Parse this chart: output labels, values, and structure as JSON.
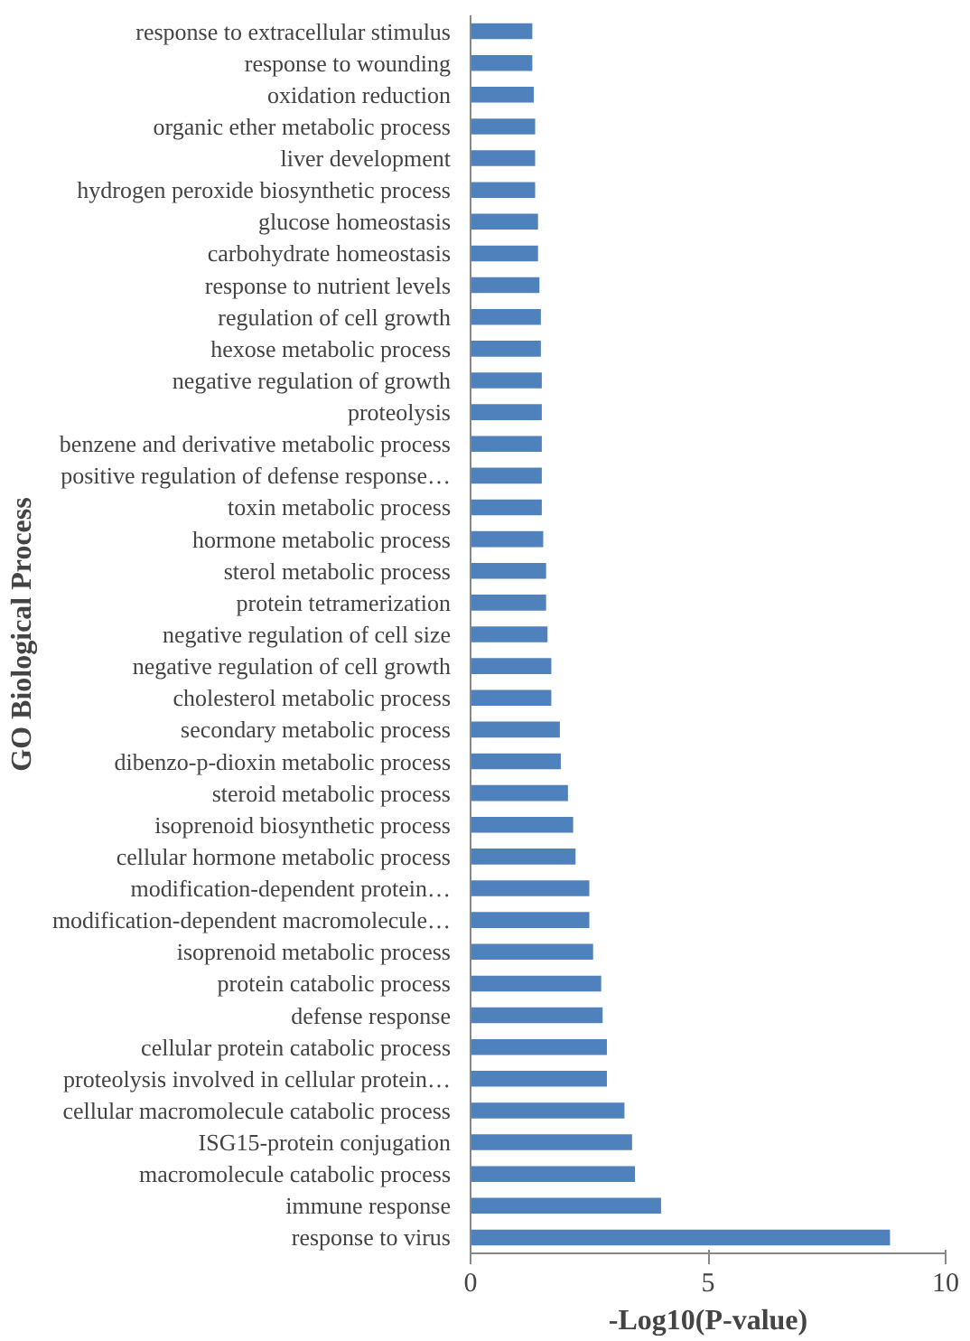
{
  "chart_data": {
    "type": "bar",
    "orientation": "horizontal",
    "xlabel": "-Log10(P-value)",
    "ylabel": "GO Biological Process",
    "categories": [
      "response to extracellular stimulus",
      "response to wounding",
      "oxidation reduction",
      "organic ether metabolic process",
      "liver development",
      "hydrogen peroxide biosynthetic process",
      "glucose homeostasis",
      "carbohydrate homeostasis",
      "response to nutrient levels",
      "regulation of cell growth",
      "hexose metabolic process",
      "negative regulation of growth",
      "proteolysis",
      "benzene and derivative metabolic process",
      "positive regulation of defense response…",
      "toxin metabolic process",
      "hormone metabolic process",
      "sterol metabolic process",
      "protein tetramerization",
      "negative regulation of cell size",
      "negative regulation of cell growth",
      "cholesterol metabolic process",
      "secondary metabolic process",
      "dibenzo-p-dioxin metabolic process",
      "steroid metabolic process",
      "isoprenoid biosynthetic process",
      "cellular hormone metabolic process",
      "modification-dependent protein…",
      "modification-dependent macromolecule…",
      "isoprenoid metabolic process",
      "protein catabolic process",
      "defense response",
      "cellular protein catabolic process",
      "proteolysis involved in cellular protein…",
      "cellular macromolecule catabolic process",
      "ISG15-protein conjugation",
      "macromolecule catabolic process",
      "immune response",
      "response to virus"
    ],
    "values": [
      1.3,
      1.3,
      1.33,
      1.36,
      1.36,
      1.36,
      1.42,
      1.42,
      1.45,
      1.48,
      1.48,
      1.5,
      1.5,
      1.5,
      1.5,
      1.5,
      1.53,
      1.59,
      1.59,
      1.62,
      1.7,
      1.7,
      1.88,
      1.9,
      2.05,
      2.16,
      2.21,
      2.5,
      2.5,
      2.58,
      2.75,
      2.78,
      2.87,
      2.87,
      3.24,
      3.4,
      3.46,
      4.01,
      8.83
    ],
    "color": "#4f81bd",
    "xlim": [
      0,
      10
    ],
    "xticks": [
      0,
      5,
      10
    ],
    "grid": false
  }
}
